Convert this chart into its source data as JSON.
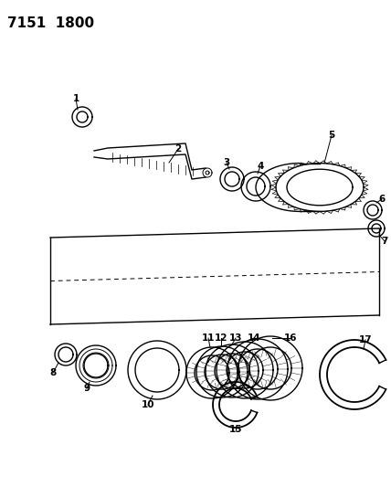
{
  "title": "7151  1800",
  "bg_color": "#ffffff",
  "fig_width": 4.28,
  "fig_height": 5.33,
  "dpi": 100,
  "title_fontsize": 11,
  "label_fontsize": 7.5
}
